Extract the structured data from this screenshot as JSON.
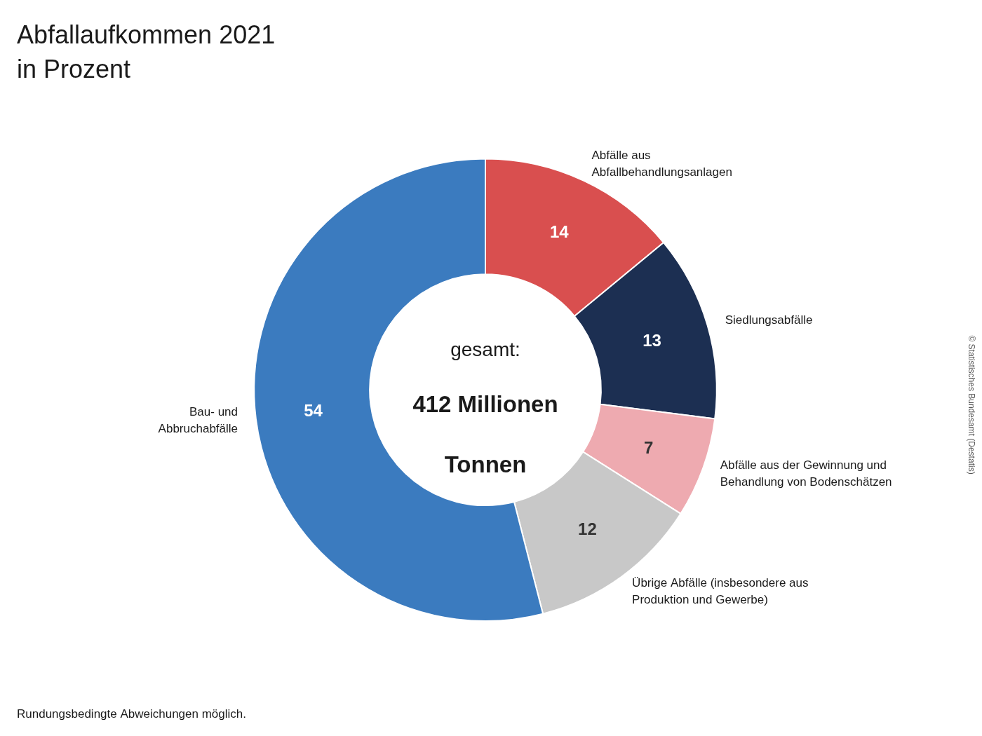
{
  "chart_data": {
    "type": "doughnut",
    "title": "Abfallaufkommen 2021",
    "subtitle": "in Prozent",
    "center_text": [
      "gesamt:",
      "412 Millionen",
      "Tonnen"
    ],
    "footnote": "Rundungsbedingte Abweichungen möglich.",
    "copyright": "© Statistisches Bundesamt (Destatis)",
    "categories": [
      "Abfälle aus\nAbfallbehandlungsanlagen",
      "Siedlungsabfälle",
      "Abfälle aus der Gewinnung und\nBehandlung von Bodenschätzen",
      "Übrige Abfälle (insbesondere aus\nProduktion und Gewerbe)",
      "Bau- und\nAbbruchabfälle"
    ],
    "values": [
      14,
      13,
      7,
      12,
      54
    ],
    "colors": [
      "#d94f4f",
      "#1c2f52",
      "#eeaab0",
      "#c8c8c8",
      "#3b7bbf"
    ],
    "data_labels": true,
    "legend": false
  }
}
